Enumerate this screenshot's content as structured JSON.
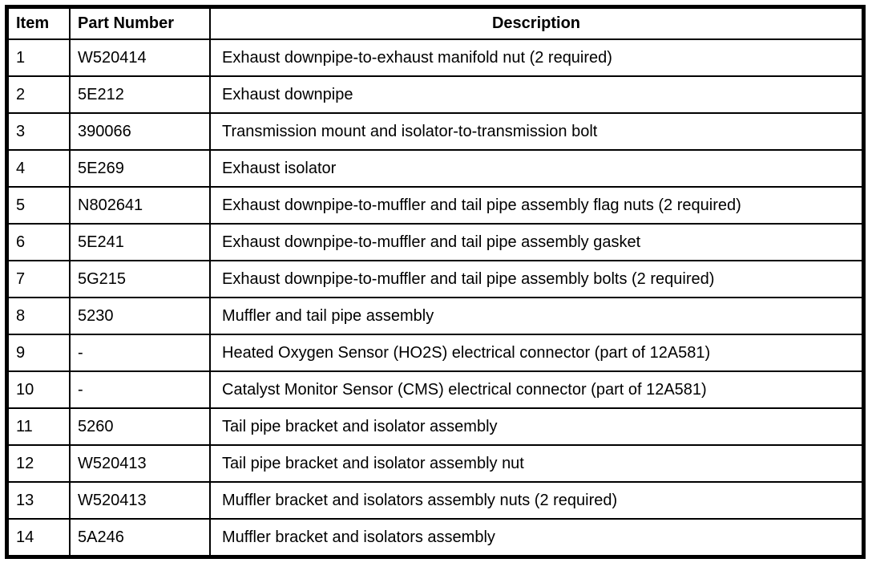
{
  "colors": {
    "border": "#000000",
    "background": "#ffffff",
    "text": "#000000"
  },
  "table": {
    "columns": [
      "Item",
      "Part Number",
      "Description"
    ],
    "rows": [
      {
        "item": "1",
        "part": "W520414",
        "desc": "Exhaust downpipe-to-exhaust manifold nut (2 required)"
      },
      {
        "item": "2",
        "part": "5E212",
        "desc": "Exhaust downpipe"
      },
      {
        "item": "3",
        "part": "390066",
        "desc": "Transmission mount and isolator-to-transmission bolt"
      },
      {
        "item": "4",
        "part": "5E269",
        "desc": "Exhaust isolator"
      },
      {
        "item": "5",
        "part": "N802641",
        "desc": "Exhaust downpipe-to-muffler and tail pipe assembly flag nuts (2 required)"
      },
      {
        "item": "6",
        "part": "5E241",
        "desc": "Exhaust downpipe-to-muffler and tail pipe assembly gasket"
      },
      {
        "item": "7",
        "part": "5G215",
        "desc": "Exhaust downpipe-to-muffler and tail pipe assembly bolts (2 required)"
      },
      {
        "item": "8",
        "part": "5230",
        "desc": "Muffler and tail pipe assembly"
      },
      {
        "item": "9",
        "part": "-",
        "desc": "Heated Oxygen Sensor (HO2S) electrical connector (part of 12A581)"
      },
      {
        "item": "10",
        "part": "-",
        "desc": "Catalyst Monitor Sensor (CMS) electrical connector (part of 12A581)"
      },
      {
        "item": "11",
        "part": "5260",
        "desc": "Tail pipe bracket and isolator assembly"
      },
      {
        "item": "12",
        "part": "W520413",
        "desc": "Tail pipe bracket and isolator assembly nut"
      },
      {
        "item": "13",
        "part": "W520413",
        "desc": "Muffler bracket and isolators assembly nuts (2 required)"
      },
      {
        "item": "14",
        "part": "5A246",
        "desc": "Muffler bracket and isolators assembly"
      }
    ]
  }
}
